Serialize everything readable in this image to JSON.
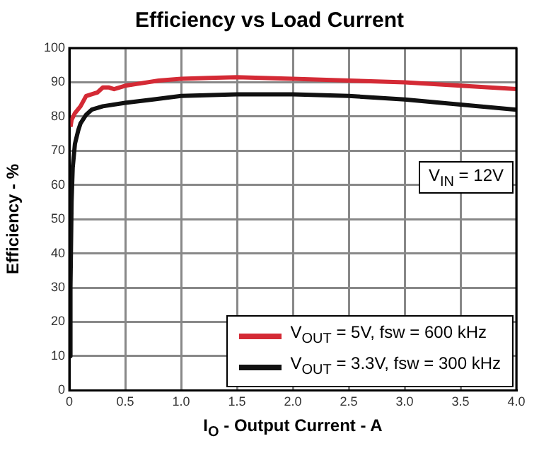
{
  "chart_data": {
    "type": "line",
    "title": "Efficiency vs Load Current",
    "xlabel": "I$_{O}$ - Output Current - A",
    "ylabel": "Efficiency - %",
    "xlim": [
      0,
      4
    ],
    "xticks": [
      0,
      0.5,
      {
        "value": 1,
        "label": "1.0"
      },
      1.5,
      {
        "value": 2,
        "label": "2.0"
      },
      2.5,
      {
        "value": 3,
        "label": "3.0"
      },
      3.5,
      {
        "value": 4,
        "label": "4.0"
      }
    ],
    "ylim": [
      0,
      100
    ],
    "yticks": [
      0,
      10,
      20,
      30,
      40,
      50,
      60,
      70,
      80,
      90,
      100
    ],
    "grid": true,
    "legend": "bottom right",
    "marker": "none",
    "line_style": "solid",
    "annotations": [
      "V$_{IN}$ = 12V"
    ],
    "series": [
      {
        "name": "V$_{OUT}$ = 5V, fsw = 600 kHz",
        "color": "#d42a35",
        "x": [
          0.01,
          0.02,
          0.05,
          0.1,
          0.15,
          0.2,
          0.25,
          0.3,
          0.35,
          0.4,
          0.5,
          0.6,
          0.8,
          1.0,
          1.25,
          1.5,
          2.0,
          2.5,
          3.0,
          3.5,
          4.0
        ],
        "values": [
          77,
          79,
          81,
          83,
          86,
          86.5,
          87,
          88.5,
          88.5,
          88,
          89,
          89.5,
          90.5,
          91,
          91.3,
          91.5,
          91,
          90.5,
          90,
          89,
          88
        ]
      },
      {
        "name": "V$_{OUT}$ = 3.3V, fsw = 300 kHz",
        "color": "#111111",
        "x": [
          0.005,
          0.01,
          0.02,
          0.03,
          0.05,
          0.08,
          0.1,
          0.15,
          0.2,
          0.3,
          0.5,
          0.75,
          1.0,
          1.5,
          2.0,
          2.5,
          3.0,
          3.5,
          4.0
        ],
        "values": [
          10,
          30,
          55,
          65,
          72,
          76,
          78,
          80.5,
          82,
          83,
          84,
          85,
          86,
          86.5,
          86.5,
          86,
          85,
          83.5,
          82
        ]
      }
    ]
  }
}
